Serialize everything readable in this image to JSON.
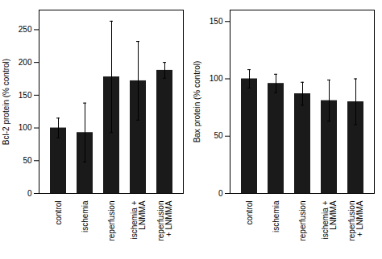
{
  "chart_data": [
    {
      "type": "bar",
      "categories": [
        "control",
        "ischemia",
        "reperfusion",
        "ischemia +\nLNMMA",
        "reperfusion\n+ LNMMA"
      ],
      "values": [
        100,
        93,
        178,
        172,
        188
      ],
      "errors": [
        15,
        45,
        85,
        60,
        12
      ],
      "color": "#1a1a1a",
      "ylabel": "Bcl-2 protein (% control)",
      "ylim": [
        0,
        280
      ],
      "yticks": [
        0,
        50,
        100,
        150,
        200,
        250
      ]
    },
    {
      "type": "bar",
      "categories": [
        "control",
        "ischemia",
        "reperfusion",
        "ischemia +\nLNMMA",
        "reperfusion\n+ LNMMA"
      ],
      "values": [
        100,
        96,
        87,
        81,
        80
      ],
      "errors": [
        8,
        8,
        10,
        18,
        20
      ],
      "color": "#1a1a1a",
      "ylabel": "Bax protein (% control)",
      "ylim": [
        0,
        160
      ],
      "yticks": [
        0,
        50,
        100,
        150
      ]
    }
  ]
}
